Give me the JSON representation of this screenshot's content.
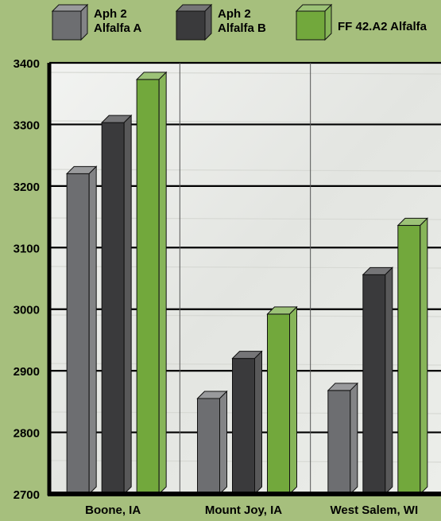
{
  "chart_data": {
    "type": "bar",
    "categories": [
      "Boone, IA",
      "Mount Joy, IA",
      "West Salem, WI"
    ],
    "series": [
      {
        "name": "Aph 2 Alfalfa A",
        "legend_lines": [
          "Aph 2",
          "Alfalfa A"
        ],
        "values": [
          3220,
          2855,
          2868
        ],
        "color": "#6d6e71"
      },
      {
        "name": "Aph 2 Alfalfa B",
        "legend_lines": [
          "Aph 2",
          "Alfalfa B"
        ],
        "values": [
          3303,
          2920,
          3056
        ],
        "color": "#3a3a3c"
      },
      {
        "name": "FF 42.A2 Alfalfa",
        "legend_lines": [
          "FF 42.A2 Alfalfa"
        ],
        "values": [
          3373,
          2992,
          3136
        ],
        "color": "#72a83c"
      }
    ],
    "ylim": [
      2700,
      3400
    ],
    "yticks": [
      2700,
      2800,
      2900,
      3000,
      3100,
      3200,
      3300,
      3400
    ],
    "grid": true,
    "legend_position": "top",
    "background_color": "#a6bf7d",
    "plot_background": "#e8e9e6"
  }
}
